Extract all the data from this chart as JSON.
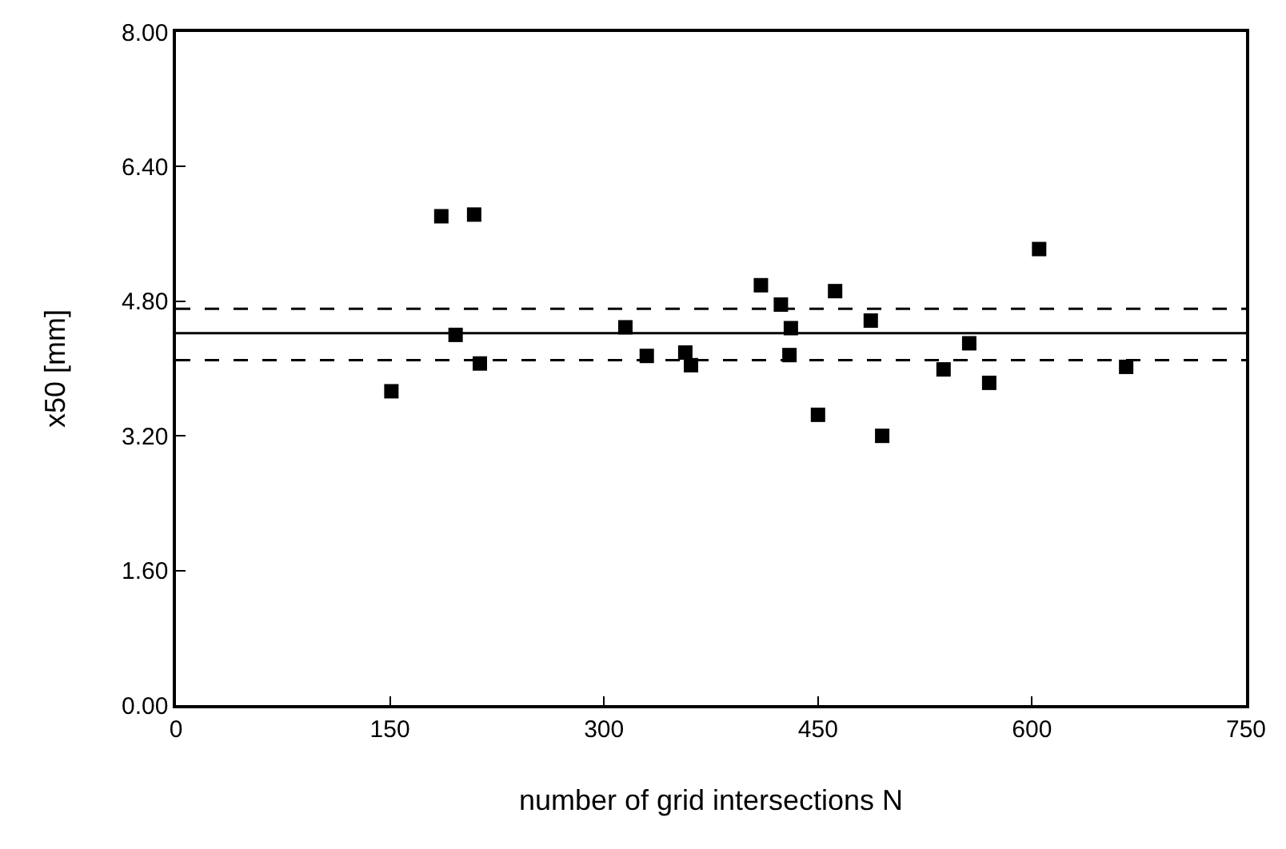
{
  "chart_data": {
    "type": "scatter",
    "xlabel": "number of grid intersections N",
    "ylabel": "x50 [mm]",
    "x": [
      151,
      186,
      196,
      209,
      213,
      315,
      330,
      357,
      361,
      410,
      424,
      431,
      430,
      450,
      462,
      487,
      495,
      538,
      556,
      570,
      605,
      666
    ],
    "series": [
      {
        "color": "#000000",
        "values": [
          3.73,
          5.81,
          4.4,
          5.83,
          4.06,
          4.49,
          4.15,
          4.19,
          4.04,
          4.99,
          4.76,
          4.48,
          4.16,
          3.45,
          4.92,
          4.57,
          3.2,
          3.99,
          4.3,
          3.83,
          5.42,
          4.02
        ]
      }
    ],
    "marker": "square",
    "xlim": [
      0,
      750
    ],
    "xticks": [
      0,
      150,
      300,
      450,
      600,
      750
    ],
    "ylim": [
      0,
      8
    ],
    "yticks": [
      {
        "value": 0,
        "label": "0.00"
      },
      {
        "value": 1.6,
        "label": "1.60"
      },
      {
        "value": 3.2,
        "label": "3.20"
      },
      {
        "value": 4.8,
        "label": "4.80"
      },
      {
        "value": 6.4,
        "label": "6.40"
      },
      {
        "value": 8,
        "label": "8.00"
      }
    ],
    "ref_lines": [
      {
        "axis": "y",
        "value": 4.42,
        "color": "#000000",
        "line_style": "solid"
      },
      {
        "axis": "y",
        "value": 4.71,
        "color": "#000000",
        "line_style": "dashed"
      },
      {
        "axis": "y",
        "value": 4.1,
        "color": "#000000",
        "line_style": "dashed"
      }
    ]
  }
}
